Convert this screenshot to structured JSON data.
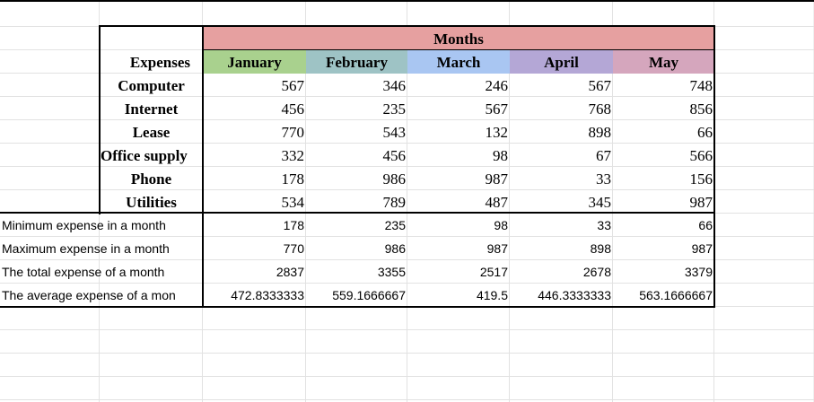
{
  "header": {
    "group_title": "Months",
    "row_header": "Expenses",
    "months": [
      "January",
      "February",
      "March",
      "April",
      "May"
    ]
  },
  "colors": {
    "months_band": "#e6a0a0",
    "january": "#a9d18e",
    "february": "#9ec3c5",
    "march": "#a9c6f2",
    "april": "#b4a7d6",
    "may": "#d5a6bd"
  },
  "rows": [
    {
      "label": "Computer",
      "values": [
        "567",
        "346",
        "246",
        "567",
        "748"
      ]
    },
    {
      "label": "Internet",
      "values": [
        "456",
        "235",
        "567",
        "768",
        "856"
      ]
    },
    {
      "label": "Lease",
      "values": [
        "770",
        "543",
        "132",
        "898",
        "66"
      ]
    },
    {
      "label": "Office supply",
      "values": [
        "332",
        "456",
        "98",
        "67",
        "566"
      ]
    },
    {
      "label": "Phone",
      "values": [
        "178",
        "986",
        "987",
        "33",
        "156"
      ]
    },
    {
      "label": "Utilities",
      "values": [
        "534",
        "789",
        "487",
        "345",
        "987"
      ]
    }
  ],
  "summary": [
    {
      "label": "Minimum expense in a month",
      "values": [
        "178",
        "235",
        "98",
        "33",
        "66"
      ]
    },
    {
      "label": "Maximum expense in a month",
      "values": [
        "770",
        "986",
        "987",
        "898",
        "987"
      ]
    },
    {
      "label": "The total expense of a month",
      "values": [
        "2837",
        "3355",
        "2517",
        "2678",
        "3379"
      ]
    },
    {
      "label": "The average expense of a mon",
      "values": [
        "472.8333333",
        "559.1666667",
        "419.5",
        "446.3333333",
        "563.1666667"
      ]
    }
  ]
}
